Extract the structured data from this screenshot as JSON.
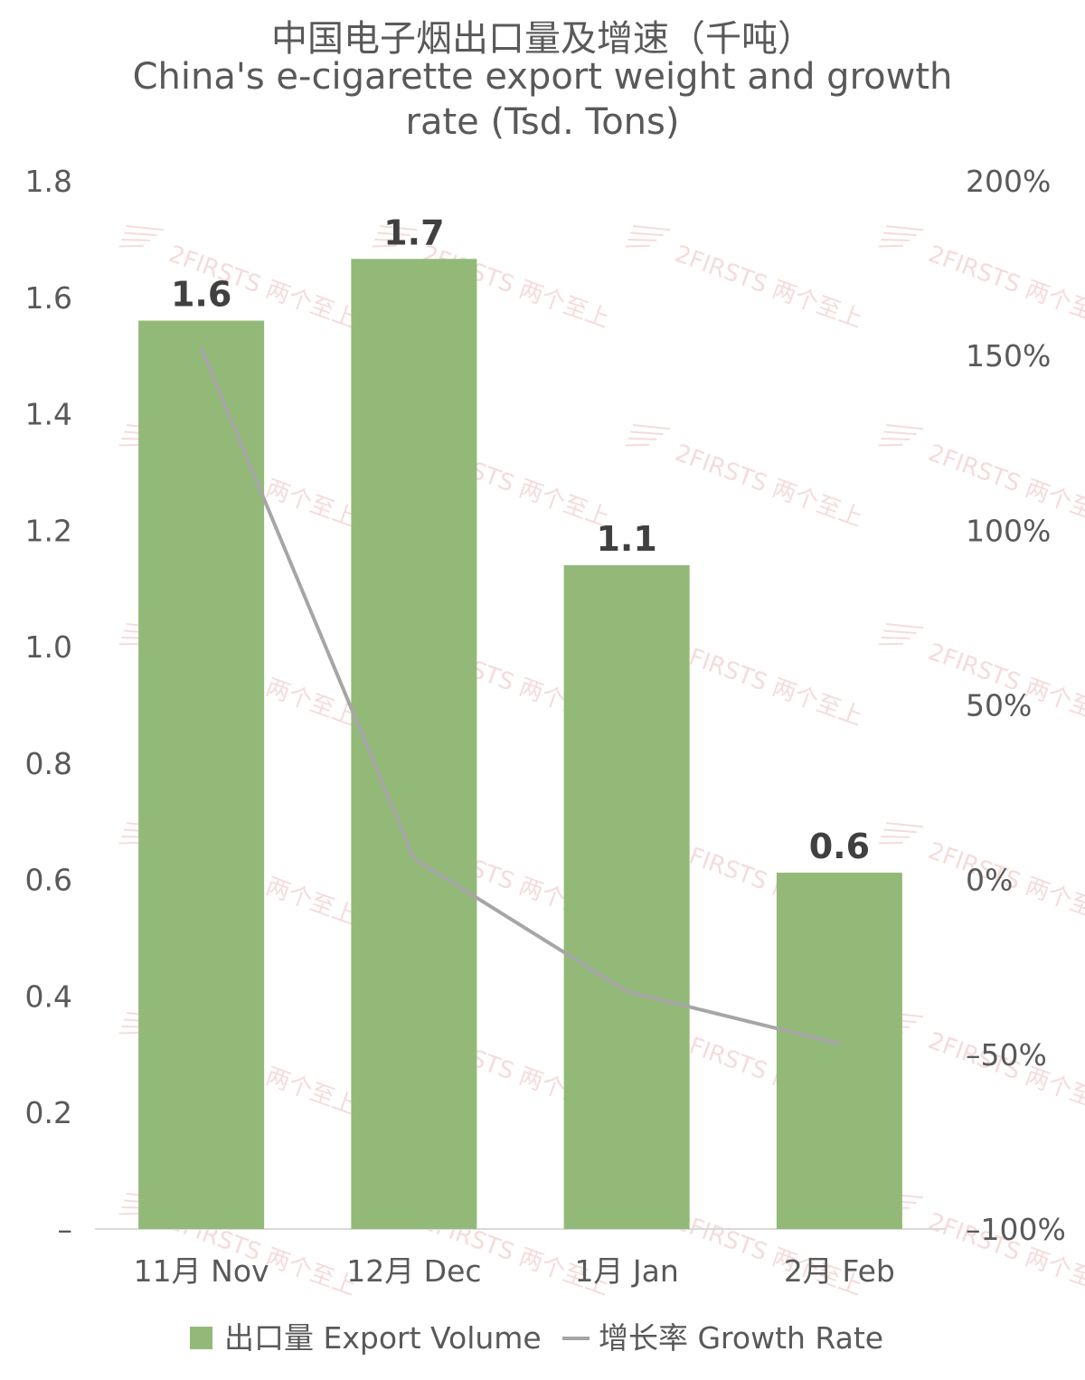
{
  "chart_data": {
    "type": "bar",
    "title_cn": "中国电子烟出口量及增速（千吨）",
    "title_en_line1": "China's e-cigarette export weight and growth",
    "title_en_line2": "rate (Tsd. Tons)",
    "categories": [
      "11月 Nov",
      "12月 Dec",
      "1月 Jan",
      "2月 Feb"
    ],
    "series": [
      {
        "name": "出口量 Export Volume",
        "type": "bar",
        "axis": "left",
        "values": [
          1.56,
          1.666,
          1.14,
          0.612
        ],
        "data_labels": [
          "1.6",
          "1.7",
          "1.1",
          "0.6"
        ],
        "color": "#93b978"
      },
      {
        "name": "增长率 Growth Rate",
        "type": "line",
        "axis": "right",
        "values": [
          152,
          6,
          -32,
          -47
        ],
        "color": "#a6a6a6"
      }
    ],
    "y_left": {
      "ylim": [
        0,
        1.8
      ],
      "ticks": [
        "–",
        "0.2",
        "0.4",
        "0.6",
        "0.8",
        "1.0",
        "1.2",
        "1.4",
        "1.6",
        "1.8"
      ]
    },
    "y_right": {
      "ylim": [
        -100,
        200
      ],
      "ticks": [
        "–100%",
        "–50%",
        "0%",
        "50%",
        "100%",
        "150%",
        "200%"
      ]
    },
    "grid": false,
    "legend_position": "bottom",
    "watermark": "2FIRSTS 两个至上"
  }
}
